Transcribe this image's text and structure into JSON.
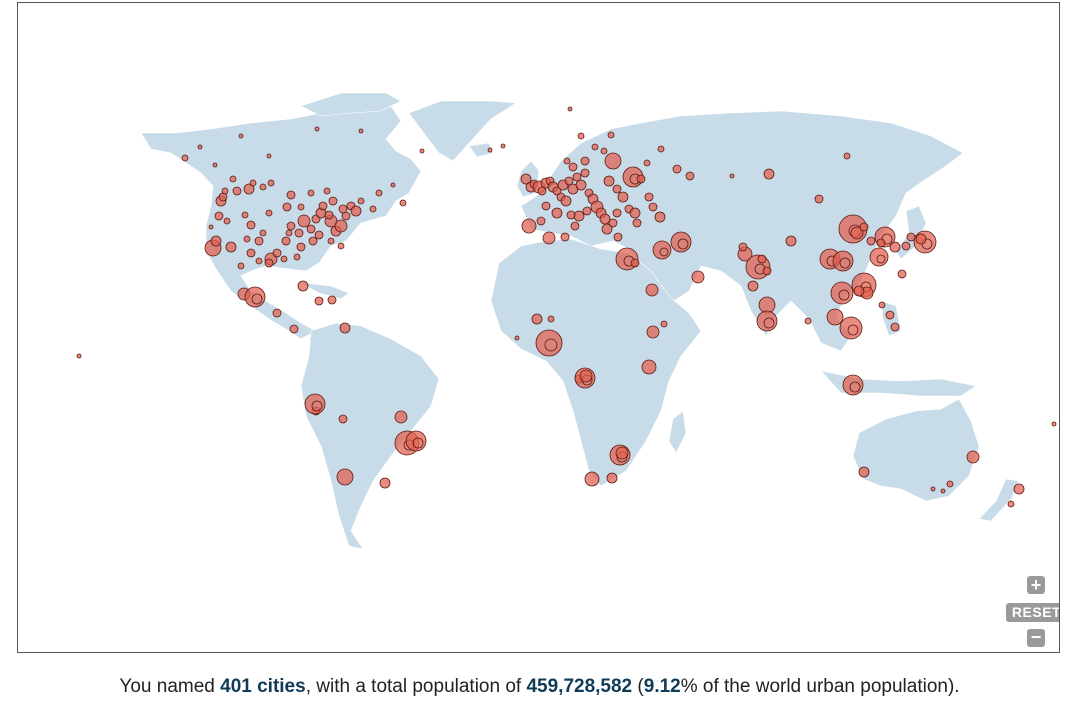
{
  "map": {
    "controls": {
      "zoom_in": "+",
      "reset": "RESET",
      "zoom_out": "−"
    },
    "colors": {
      "land": "#c8dbe8",
      "city_fill": "#e0604d",
      "city_stroke": "#5a1a12"
    }
  },
  "summary": {
    "prefix": "You named ",
    "cities": "401 cities",
    "mid1": ", with a total population of ",
    "population": "459,728,582",
    "mid2": " (",
    "percent": "9.12",
    "suffix": "% of the world urban population)."
  }
}
